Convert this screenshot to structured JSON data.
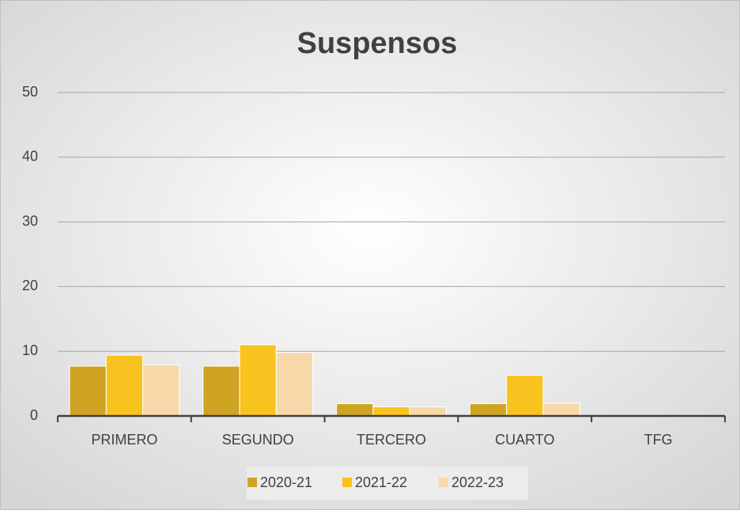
{
  "chart_data": {
    "type": "bar",
    "title": "Suspensos",
    "categories": [
      "PRIMERO",
      "SEGUNDO",
      "TERCERO",
      "CUARTO",
      "TFG"
    ],
    "series": [
      {
        "name": "2020-21",
        "color": "#cfa422",
        "values": [
          7.7,
          7.7,
          1.9,
          1.9,
          0
        ]
      },
      {
        "name": "2021-22",
        "color": "#f9c31f",
        "values": [
          9.4,
          11,
          1.4,
          6.3,
          0
        ]
      },
      {
        "name": "2022-23",
        "color": "#f7d8a8",
        "values": [
          7.9,
          9.8,
          1.4,
          2.0,
          0
        ]
      }
    ],
    "ylim": [
      0,
      50
    ],
    "yticks": [
      0,
      10,
      20,
      30,
      40,
      50
    ],
    "grid": true,
    "legend": "bottom"
  }
}
